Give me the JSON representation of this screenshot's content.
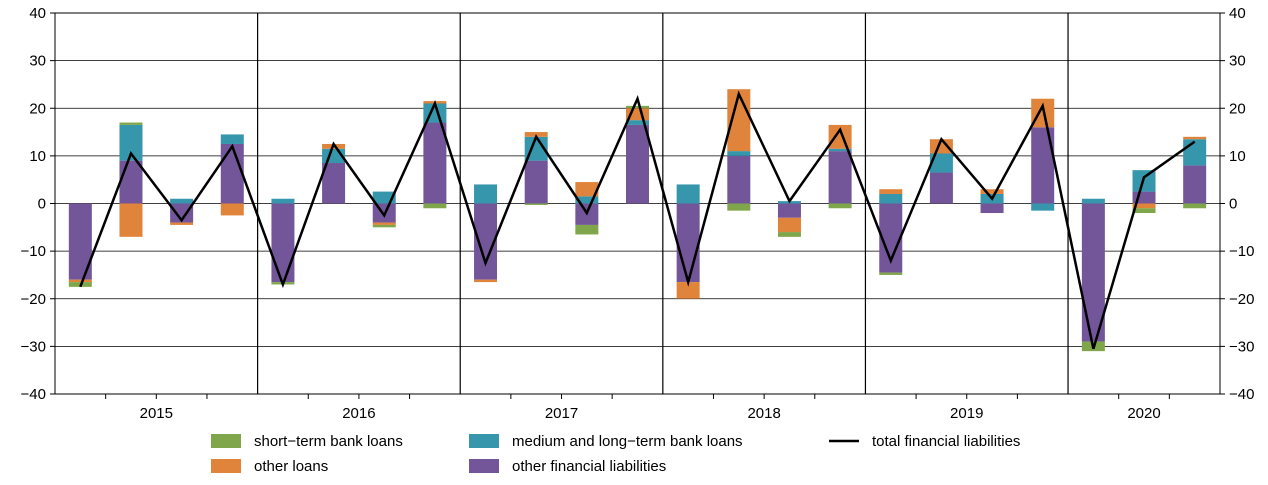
{
  "chart_data": {
    "type": "bar",
    "subtype": "stacked-bar-with-line",
    "x_unit": "quarter",
    "years": [
      "2015",
      "2016",
      "2017",
      "2018",
      "2019",
      "2020"
    ],
    "quarters_per_year": [
      4,
      4,
      4,
      4,
      4,
      3
    ],
    "ylim": [
      -40,
      40
    ],
    "yticks": [
      -40,
      -30,
      -20,
      -10,
      0,
      10,
      20,
      30,
      40
    ],
    "ytick_labels": [
      "−40",
      "−30",
      "−20",
      "−10",
      "0",
      "10",
      "20",
      "30",
      "40"
    ],
    "grid": true,
    "legend_position": "bottom",
    "series": [
      {
        "name": "short−term bank loans",
        "color": "#7fa64a",
        "kind": "bar",
        "values": [
          -1.0,
          0.5,
          0,
          0,
          -0.5,
          0,
          -0.5,
          -1.0,
          0,
          -0.3,
          -2.0,
          0.5,
          0,
          -1.5,
          -1.0,
          -1.0,
          -0.5,
          0,
          0,
          0,
          -2.0,
          -1.0,
          -1.0
        ]
      },
      {
        "name": "other loans",
        "color": "#e0843b",
        "kind": "bar",
        "values": [
          -0.5,
          -7.0,
          -0.5,
          -2.5,
          0,
          1.0,
          -0.5,
          0.5,
          -0.5,
          1.0,
          3.0,
          2.5,
          -3.5,
          13.0,
          -3.0,
          5.0,
          1.0,
          3.0,
          1.0,
          6.0,
          0,
          -1.0,
          0.5
        ]
      },
      {
        "name": "medium and long−term bank loans",
        "color": "#3596ac",
        "kind": "bar",
        "values": [
          0,
          7.5,
          1.0,
          2.0,
          1.0,
          3.0,
          2.5,
          4.0,
          4.0,
          5.0,
          1.5,
          1.0,
          4.0,
          1.0,
          0.5,
          0.5,
          2.0,
          4.0,
          2.0,
          -1.5,
          1.0,
          4.5,
          5.5
        ]
      },
      {
        "name": "other financial liabilities",
        "color": "#73569a",
        "kind": "bar",
        "values": [
          -16.0,
          9.0,
          -4.0,
          12.5,
          -16.5,
          8.5,
          -4.0,
          17.0,
          -16.0,
          9.0,
          -4.5,
          16.5,
          -16.5,
          10.0,
          -3.0,
          11.0,
          -14.5,
          6.5,
          -2.0,
          16.0,
          -29.0,
          2.5,
          8.0
        ]
      },
      {
        "name": "total financial liabilities",
        "color": "#000000",
        "kind": "line",
        "values": [
          -17.5,
          10.5,
          -3.5,
          12.0,
          -17.0,
          12.5,
          -2.5,
          21.0,
          -12.5,
          14.0,
          -2.0,
          22.0,
          -16.5,
          23.0,
          0.5,
          15.5,
          -12.0,
          13.5,
          1.0,
          20.5,
          -30.5,
          5.5,
          13.0
        ]
      }
    ],
    "legend": {
      "rows": [
        [
          "short−term bank loans",
          "medium and long−term bank loans",
          "total financial liabilities"
        ],
        [
          "other loans",
          "other financial liabilities"
        ]
      ]
    }
  }
}
